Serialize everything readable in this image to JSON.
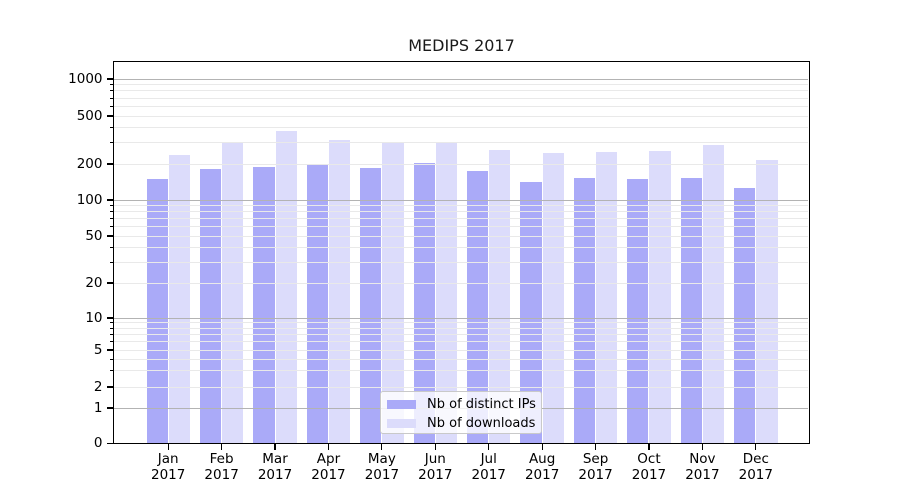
{
  "chart_data": {
    "type": "bar",
    "title": "MEDIPS 2017",
    "categories": [
      "Jan",
      "Feb",
      "Mar",
      "Apr",
      "May",
      "Jun",
      "Jul",
      "Aug",
      "Sep",
      "Oct",
      "Nov",
      "Dec"
    ],
    "year": "2017",
    "series": [
      {
        "name": "Nb of distinct IPs",
        "color": "#aaaaf8",
        "values": [
          149,
          181,
          187,
          201,
          186,
          203,
          174,
          141,
          154,
          150,
          154,
          127
        ]
      },
      {
        "name": "Nb of downloads",
        "color": "#dcdcfb",
        "values": [
          238,
          306,
          372,
          315,
          296,
          302,
          260,
          248,
          253,
          255,
          289,
          215
        ]
      }
    ],
    "yscale": "symlog",
    "ylim": [
      0,
      1400
    ],
    "ytick_values": [
      0,
      1,
      2,
      5,
      10,
      20,
      50,
      100,
      200,
      500,
      1000
    ],
    "ytick_labels": [
      "0",
      "1",
      "2",
      "5",
      "10",
      "20",
      "50",
      "100",
      "200",
      "500",
      "1000"
    ],
    "grid": {
      "major_color": "#b3b3b3",
      "minor_color": "#e9e9e9",
      "major_values": [
        1,
        10,
        100,
        1000
      ],
      "sub_values": [
        2,
        5,
        20,
        50,
        200,
        500
      ],
      "minor_values": [
        3,
        4,
        6,
        7,
        8,
        9,
        30,
        40,
        60,
        70,
        80,
        90,
        300,
        400,
        600,
        700,
        800,
        900
      ]
    },
    "legend": {
      "position": "lower center"
    }
  }
}
